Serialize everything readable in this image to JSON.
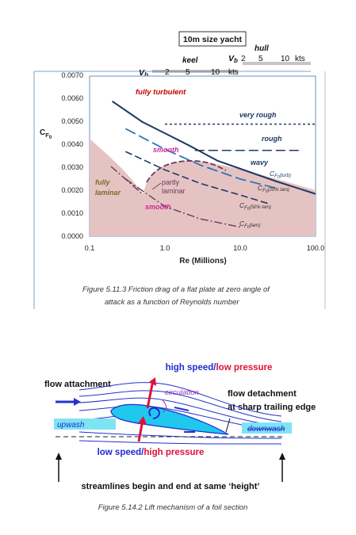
{
  "figure1": {
    "yacht_box": "10m size yacht",
    "hull_label": "hull",
    "keel_label": "keel",
    "vb_label_hull": "V",
    "vb_label_keel": "V",
    "vb_sub": "b",
    "hull_scale": [
      "2",
      "5",
      "10"
    ],
    "hull_unit": "kts",
    "keel_scale": [
      "2",
      "5",
      "10"
    ],
    "keel_unit": "kts",
    "ylabel_main": "C",
    "ylabel_sub": "F",
    "ylabel_sub2": "0",
    "xlabel": "Re (Millions)",
    "y_ticks": [
      "0.0000",
      "0.0010",
      "0.0020",
      "0.0030",
      "0.0040",
      "0.0050",
      "0.0060",
      "0.0070"
    ],
    "x_ticks": [
      "0.1",
      "1.0",
      "10.0",
      "100.0"
    ],
    "labels": {
      "fully_turbulent": "fully turbulent",
      "very_rough": "very rough",
      "rough": "rough",
      "smooth_top": "smooth",
      "wavy": "wavy",
      "fully_laminar_1": "fully",
      "fully_laminar_2": "laminar",
      "partly_laminar_1": "partly",
      "partly_laminar_2": "laminar",
      "smooth_bottom": "smooth",
      "cf_turb_sub": "(turb)",
      "cf_20_sub": "(20% lam)",
      "cf_50_sub": "(50% lam)",
      "cf_lam_sub": "(lam)"
    },
    "caption_line1": "Figure 5.11.3 Friction drag of a flat plate at zero angle of",
    "caption_line2": "attack as a function of Reynolds number",
    "colors": {
      "dark_blue": "#1f3864",
      "mid_blue": "#2e75b6",
      "pink_fill": "#e8c8c8",
      "purple": "#6b3a5a",
      "red_text": "#c00000",
      "magenta_text": "#cc2a94",
      "olive_text": "#7a6a2a"
    }
  },
  "chart_data": {
    "type": "line",
    "xscale": "log",
    "xlabel": "Re (Millions)",
    "ylabel": "CF0",
    "xlim": [
      0.1,
      100.0
    ],
    "ylim": [
      0.0,
      0.007
    ],
    "series": [
      {
        "name": "very rough",
        "x": [
          1.0,
          100.0
        ],
        "y": [
          0.0049,
          0.0049
        ]
      },
      {
        "name": "rough",
        "x": [
          2.5,
          60.0
        ],
        "y": [
          0.00375,
          0.00375
        ]
      },
      {
        "name": "CF0 (turb)",
        "x": [
          0.2,
          0.5,
          1.0,
          2.0,
          5.0,
          10.0,
          30.0,
          100.0
        ],
        "y": [
          0.0059,
          0.005,
          0.0045,
          0.004,
          0.0033,
          0.00295,
          0.0024,
          0.00185
        ]
      },
      {
        "name": "CF0 (20% lam)",
        "x": [
          0.3,
          1.0,
          3.0,
          10.0,
          30.0
        ],
        "y": [
          0.0047,
          0.0038,
          0.0031,
          0.0025,
          0.0021
        ]
      },
      {
        "name": "CF0 (50% lam)",
        "x": [
          0.3,
          1.0,
          3.0,
          10.0,
          25.0
        ],
        "y": [
          0.0037,
          0.0029,
          0.0023,
          0.0018,
          0.0014
        ]
      },
      {
        "name": "CF0 (lam)",
        "x": [
          0.3,
          1.0,
          3.0,
          10.0
        ],
        "y": [
          0.0025,
          0.0013,
          0.00075,
          0.0004
        ]
      }
    ]
  },
  "figure2": {
    "high_speed": "high speed",
    "slash": "/",
    "low_pressure": "low pressure",
    "flow_attachment": "flow attachment",
    "circulation": "circulation",
    "flow_detachment_1": "flow detachment",
    "flow_detachment_2": "at sharp trailing edge",
    "upwash": "upwash",
    "downwash": "downwash",
    "low_speed": "low speed",
    "high_pressure": "high pressure",
    "streamlines": "streamlines begin and end at same ‘height’",
    "caption": "Figure 5.14.2 Lift mechanism of  a foil section",
    "colors": {
      "blue": "#1f2bd1",
      "red": "#e0103a",
      "cyan": "#20c8ee",
      "purple": "#9b30b0"
    }
  }
}
